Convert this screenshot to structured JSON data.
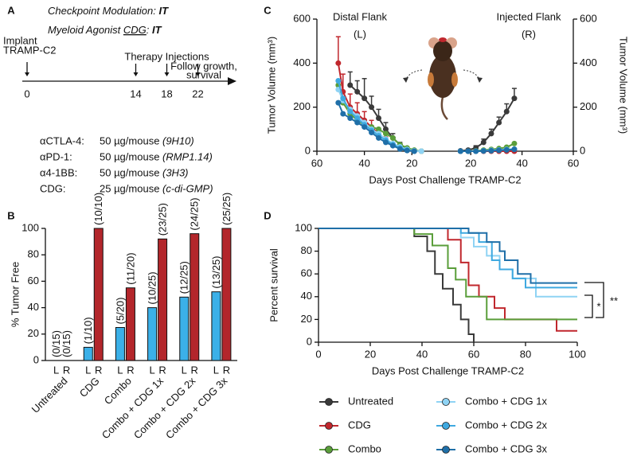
{
  "panel_a": {
    "label": "A",
    "headline": [
      [
        {
          "text": "Checkpoint Modulation: "
        },
        {
          "text": "IT",
          "emphasis": "bold"
        }
      ],
      [
        {
          "text": "Myeloid Agonist "
        },
        {
          "text": "CDG",
          "emphasis": "underline"
        },
        {
          "text": ": "
        },
        {
          "text": "IT",
          "emphasis": "bold"
        }
      ]
    ],
    "timeline": {
      "implant_label": [
        "Implant",
        "TRAMP-C2"
      ],
      "implant_day": 0,
      "therapy_label": "Therapy Injections",
      "therapy_days": [
        14,
        18,
        22
      ],
      "follow_label": [
        "Follow growth,",
        "survival"
      ]
    },
    "dosing": [
      [
        "αCTLA-4:",
        "50 µg/mouse",
        "(9H10)"
      ],
      [
        "αPD-1:",
        "50 µg/mouse",
        "(RMP1.14)"
      ],
      [
        "α4-1BB:",
        "50 µg/mouse",
        "(3H3)"
      ],
      [
        "CDG:",
        "25 µg/mouse",
        "(c-di-GMP)"
      ]
    ]
  },
  "chart_data": [
    {
      "type": "bar",
      "label": "B",
      "ylabel": "% Tumor Free",
      "categories": [
        "Untreated",
        "CDG",
        "Combo",
        "Combo + CDG 1x",
        "Combo + CDG 2x",
        "Combo + CDG 3x"
      ],
      "series": [
        {
          "name": "L",
          "color": "#3bb0e8",
          "values": [
            0,
            10,
            25,
            40,
            48,
            52
          ],
          "value_labels": [
            "(0/15)",
            "(1/10)",
            "(5/20)",
            "(10/25)",
            "(12/25)",
            "(13/25)"
          ]
        },
        {
          "name": "R",
          "color": "#b3262b",
          "values": [
            0,
            100,
            55,
            92,
            96,
            100
          ],
          "value_labels": [
            "(0/15)",
            "(10/10)",
            "(11/20)",
            "(23/25)",
            "(24/25)",
            "(25/25)"
          ]
        }
      ],
      "ylim": [
        0,
        100
      ],
      "yticks": [
        0,
        20,
        40,
        60,
        80,
        100
      ]
    },
    {
      "type": "line",
      "label": "C",
      "ylabel": "Tumor Volume (mm³)",
      "xlabel": "Days Post Challenge TRAMP-C2",
      "ylim": [
        0,
        600
      ],
      "yticks": [
        0,
        200,
        400,
        600
      ],
      "y2lim": [
        0,
        600
      ],
      "y2ticks": [
        0,
        200,
        400,
        600
      ],
      "panels": [
        {
          "title": "Distal Flank",
          "side": "(L)",
          "xlim": [
            60,
            6
          ],
          "xticks": [
            60,
            40,
            20
          ],
          "x": [
            51,
            49,
            46,
            43,
            40,
            37,
            34,
            31,
            28,
            25,
            22,
            19,
            16
          ],
          "series": [
            {
              "color": "#3a3a3a",
              "values": [
                null,
                null,
                300,
                270,
                240,
                200,
                150,
                100,
                60,
                30,
                12,
                4,
                0
              ],
              "errors": [
                null,
                null,
                60,
                50,
                90,
                50,
                40,
                30,
                20,
                10,
                null,
                null,
                null
              ]
            },
            {
              "color": "#c0272d",
              "values": [
                400,
                270,
                200,
                170,
                140,
                110,
                80,
                50,
                30,
                15,
                5,
                0,
                null
              ],
              "errors": [
                120,
                80,
                60,
                50,
                40,
                30,
                25,
                15,
                10,
                5,
                null,
                null,
                null
              ]
            },
            {
              "color": "#5a9e3a",
              "values": [
                300,
                220,
                170,
                140,
                120,
                110,
                100,
                80,
                60,
                30,
                15,
                5,
                0
              ]
            },
            {
              "color": "#8fd3f4",
              "values": [
                280,
                230,
                190,
                160,
                130,
                100,
                80,
                55,
                35,
                20,
                8,
                2,
                0
              ]
            },
            {
              "color": "#3fa9e0",
              "values": [
                320,
                240,
                180,
                150,
                120,
                95,
                70,
                50,
                30,
                15,
                5,
                0,
                null
              ]
            },
            {
              "color": "#1f6fa8",
              "values": [
                220,
                170,
                150,
                130,
                110,
                85,
                60,
                40,
                25,
                10,
                3,
                0,
                null
              ]
            }
          ]
        },
        {
          "title": "Injected Flank",
          "side": "(R)",
          "xlim": [
            10,
            60
          ],
          "xticks": [
            20,
            40,
            60
          ],
          "x": [
            16,
            19,
            22,
            25,
            28,
            31,
            34,
            37
          ],
          "series": [
            {
              "color": "#3a3a3a",
              "axis": "y2",
              "values": [
                2,
                5,
                15,
                40,
                80,
                130,
                180,
                240
              ],
              "errors": [
                2,
                5,
                10,
                15,
                20,
                25,
                35,
                45
              ]
            },
            {
              "color": "#c0272d",
              "axis": "y2",
              "values": [
                0,
                0,
                0,
                0,
                0,
                0,
                0,
                0
              ]
            },
            {
              "color": "#5a9e3a",
              "axis": "y2",
              "values": [
                0,
                0,
                2,
                5,
                8,
                12,
                18,
                35
              ]
            },
            {
              "color": "#8fd3f4",
              "axis": "y2",
              "values": [
                0,
                0,
                0,
                2,
                4,
                6,
                8,
                10
              ]
            },
            {
              "color": "#3fa9e0",
              "axis": "y2",
              "values": [
                0,
                0,
                0,
                2,
                3,
                5,
                7,
                9
              ]
            },
            {
              "color": "#1f6fa8",
              "axis": "y2",
              "values": [
                0,
                0,
                0,
                1,
                2,
                4,
                6,
                8
              ]
            }
          ]
        }
      ]
    },
    {
      "type": "step",
      "label": "D",
      "ylabel": "Percent survival",
      "xlabel": "Days Post Challenge TRAMP-C2",
      "xlim": [
        0,
        100
      ],
      "xticks": [
        0,
        20,
        40,
        60,
        80,
        100
      ],
      "ylim": [
        0,
        100
      ],
      "yticks": [
        0,
        20,
        40,
        60,
        80,
        100
      ],
      "series": [
        {
          "name": "Untreated",
          "color": "#3a3a3a",
          "x": [
            0,
            37,
            42,
            45,
            48,
            52,
            55,
            58,
            60
          ],
          "values": [
            100,
            93,
            80,
            60,
            47,
            33,
            20,
            7,
            0
          ]
        },
        {
          "name": "CDG",
          "color": "#c0272d",
          "x": [
            0,
            50,
            55,
            58,
            62,
            68,
            72,
            92,
            100
          ],
          "values": [
            100,
            90,
            70,
            50,
            40,
            30,
            20,
            10,
            10
          ]
        },
        {
          "name": "Combo",
          "color": "#5a9e3a",
          "x": [
            0,
            37,
            44,
            50,
            53,
            57,
            65,
            100
          ],
          "values": [
            100,
            95,
            85,
            65,
            55,
            40,
            20,
            20
          ]
        },
        {
          "name": "Combo + CDG 1x",
          "color": "#8fd3f4",
          "x": [
            0,
            55,
            60,
            65,
            70,
            75,
            84,
            100
          ],
          "values": [
            100,
            92,
            84,
            76,
            64,
            56,
            40,
            40
          ]
        },
        {
          "name": "Combo + CDG 2x",
          "color": "#3fa9e0",
          "x": [
            0,
            55,
            62,
            67,
            70,
            75,
            80,
            100
          ],
          "values": [
            100,
            96,
            88,
            72,
            64,
            56,
            48,
            48
          ]
        },
        {
          "name": "Combo + CDG 3x",
          "color": "#1f6fa8",
          "x": [
            0,
            58,
            65,
            70,
            72,
            77,
            82,
            100
          ],
          "values": [
            100,
            96,
            88,
            80,
            72,
            60,
            52,
            52
          ]
        }
      ],
      "annotations": [
        "*",
        "**"
      ]
    }
  ]
}
